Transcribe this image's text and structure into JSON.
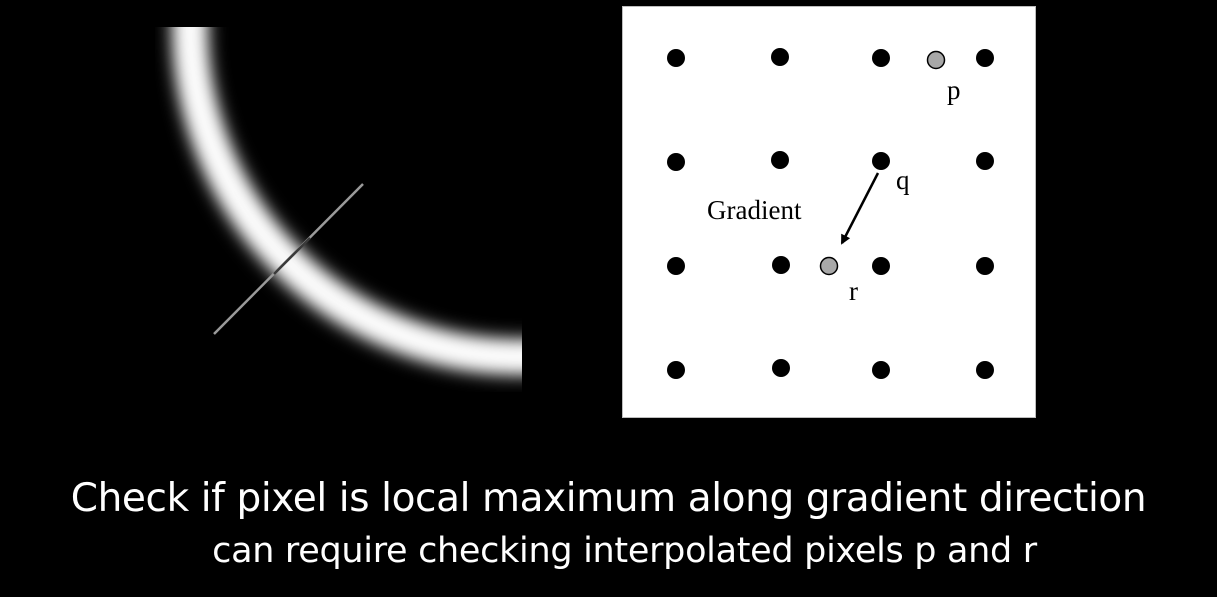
{
  "caption": {
    "line1": "Check if pixel is local maximum along gradient direction",
    "line2": "can require checking interpolated pixels p and r"
  },
  "diagram": {
    "labels": {
      "p": "p",
      "q": "q",
      "r": "r",
      "gradient": "Gradient"
    },
    "grid": {
      "rows": 4,
      "cols": 4
    },
    "colors": {
      "pixel": "#000000",
      "interpolated": "#a8a8a8",
      "panel": "#ffffff",
      "background": "#000000"
    }
  }
}
